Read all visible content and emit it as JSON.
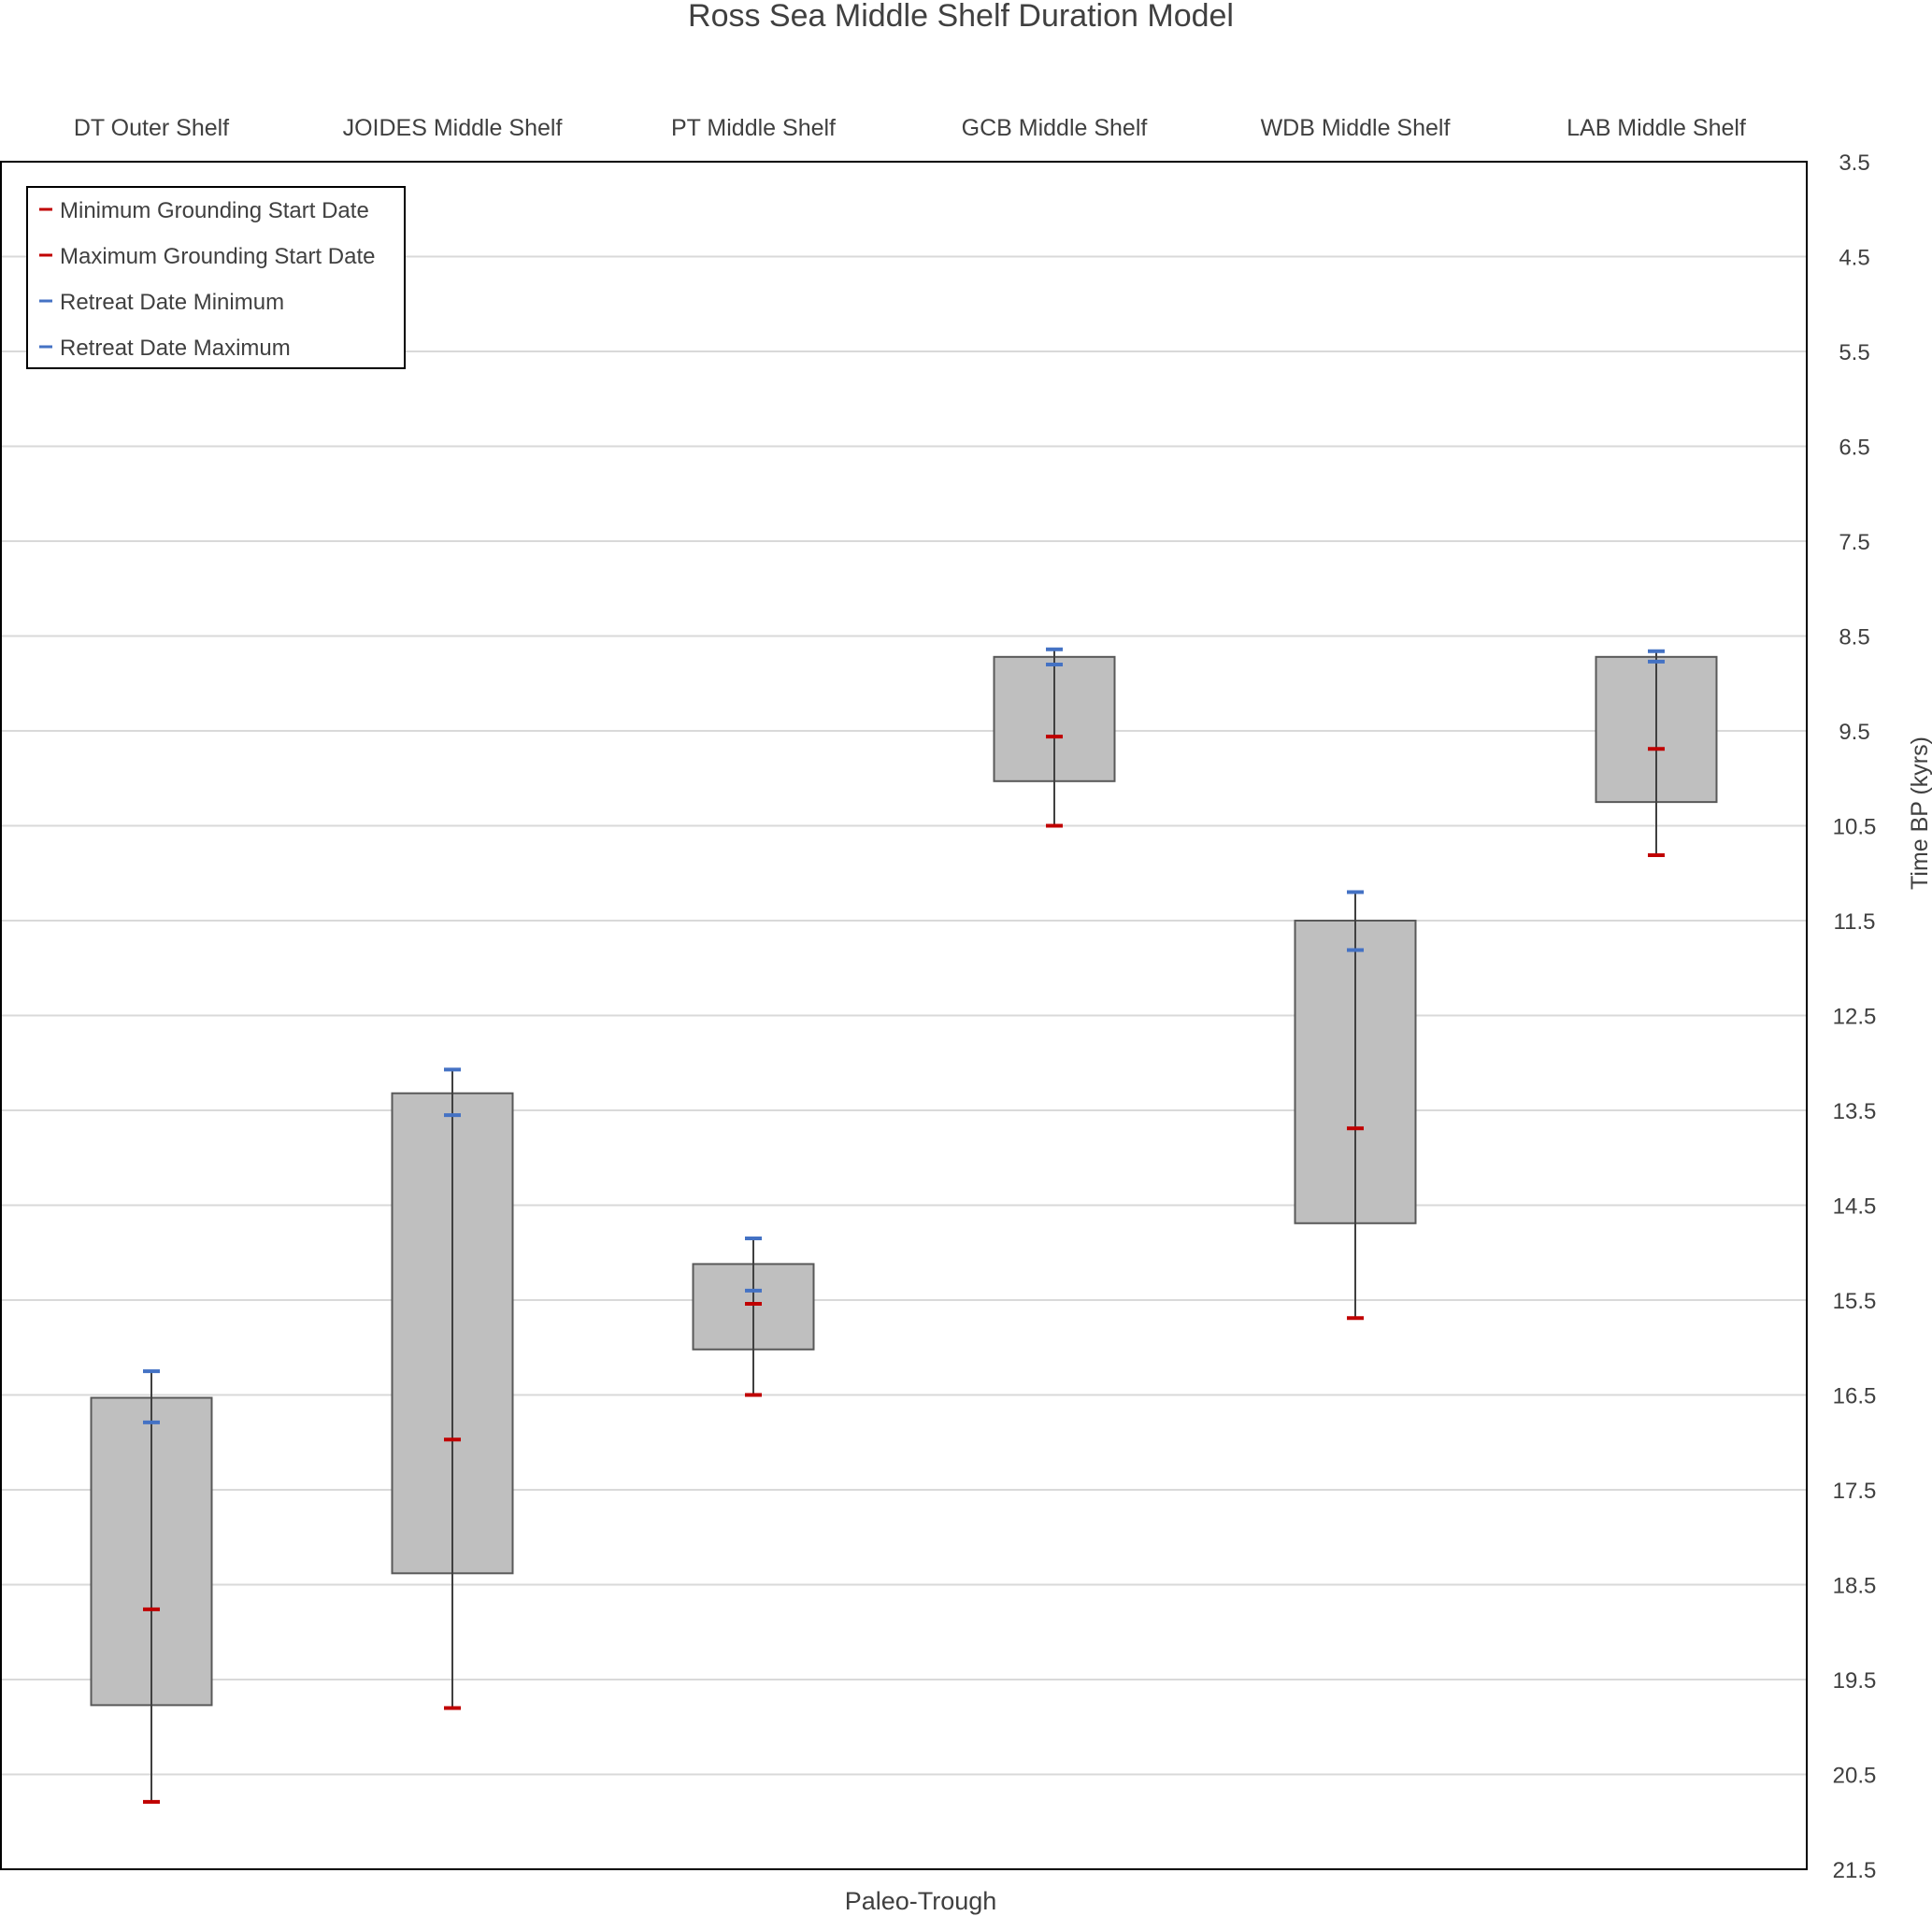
{
  "chart_data": {
    "type": "box-range",
    "title": "Ross Sea Middle Shelf Duration Model",
    "xlabel": "Paleo-Trough",
    "ylabel": "Time BP (kyrs)",
    "ylim": [
      3.5,
      21.5
    ],
    "y_inverted": true,
    "y_ticks": [
      "3.5",
      "4.5",
      "5.5",
      "6.5",
      "7.5",
      "8.5",
      "9.5",
      "10.5",
      "11.5",
      "12.5",
      "13.5",
      "14.5",
      "15.5",
      "16.5",
      "17.5",
      "18.5",
      "19.5",
      "20.5",
      "21.5"
    ],
    "grid": true,
    "legend_position": "top-left",
    "categories": [
      "DT Outer Shelf",
      "JOIDES Middle Shelf",
      "PT Middle Shelf",
      "GCB Middle Shelf",
      "WDB Middle Shelf",
      "LAB Middle Shelf"
    ],
    "series": [
      {
        "name": "Minimum Grounding  Start Date",
        "color": "#c00000",
        "values": [
          18.76,
          16.97,
          15.54,
          9.56,
          13.69,
          9.69
        ]
      },
      {
        "name": "Maximum  Grounding Start Date",
        "color": "#c00000",
        "values": [
          20.79,
          19.8,
          16.5,
          10.5,
          15.69,
          10.81
        ]
      },
      {
        "name": "Retreat Date Minimum",
        "color": "#4472c4",
        "values": [
          16.25,
          13.07,
          14.85,
          8.64,
          11.2,
          8.66
        ]
      },
      {
        "name": "Retreat Date Maximum",
        "color": "#4472c4",
        "values": [
          16.79,
          13.55,
          15.4,
          8.8,
          11.81,
          8.77
        ]
      }
    ],
    "box_top": [
      16.53,
      13.32,
      15.12,
      8.72,
      11.5,
      8.72
    ],
    "box_bottom": [
      19.77,
      18.38,
      16.02,
      10.03,
      14.69,
      10.25
    ],
    "box_color": "#bfbfbf"
  }
}
